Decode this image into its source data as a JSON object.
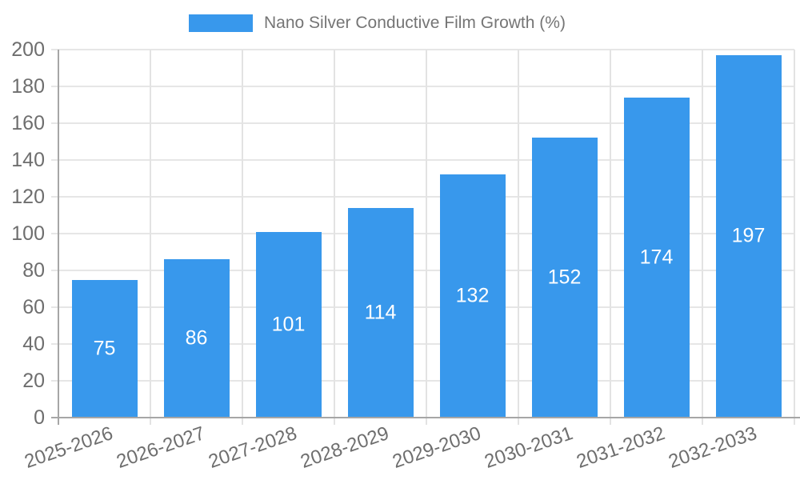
{
  "legend": {
    "items": [
      {
        "label": "Nano Silver Conductive Film Growth (%)",
        "swatch_color": "#3898ec"
      }
    ],
    "position": "top"
  },
  "chart_data": {
    "type": "bar",
    "title": "Nano Silver Conductive Film Growth (%)",
    "categories": [
      "2025-2026",
      "2026-2027",
      "2027-2028",
      "2028-2029",
      "2029-2030",
      "2030-2031",
      "2031-2032",
      "2032-2033"
    ],
    "values": [
      75,
      86,
      101,
      114,
      132,
      152,
      174,
      197
    ],
    "xlabel": "",
    "ylabel": "",
    "ylim": [
      0,
      200
    ],
    "ytick_step": 20,
    "yticks": [
      0,
      20,
      40,
      60,
      80,
      100,
      120,
      140,
      160,
      180,
      200
    ],
    "grid": true,
    "legend_position": "top",
    "x_label_rotation_deg": -19,
    "colors": {
      "bar": "#3898ec",
      "bar_value_label": "#ffffff",
      "gridline": "#e6e6e6",
      "axis_line": "#a6a6a6",
      "tick_text": "#6e6e6e",
      "legend_text": "#757575"
    }
  }
}
